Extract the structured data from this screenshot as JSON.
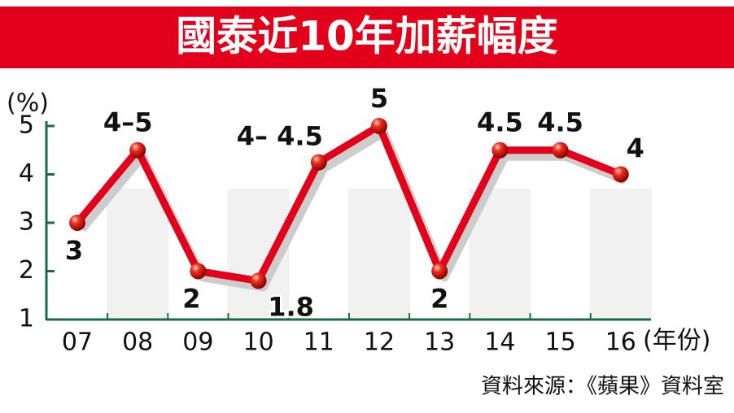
{
  "chart_data": {
    "type": "line",
    "title": "國泰近10年加薪幅度",
    "y_label": "(%)",
    "x_label": "(年份)",
    "source": "資料來源：《蘋果》資料室",
    "categories": [
      "07",
      "08",
      "09",
      "10",
      "11",
      "12",
      "13",
      "14",
      "15",
      "16"
    ],
    "values": [
      3,
      4.5,
      2,
      1.8,
      4.25,
      5,
      2,
      4.5,
      4.5,
      4
    ],
    "value_labels": [
      "3",
      "4–5",
      "2",
      "1.8",
      "4– 4.5",
      "5",
      "2",
      "4.5",
      "4.5",
      "4"
    ],
    "color": "#e3001b",
    "ylim": [
      1,
      5.1
    ],
    "yticks": [
      1,
      2,
      3,
      4,
      5
    ]
  }
}
